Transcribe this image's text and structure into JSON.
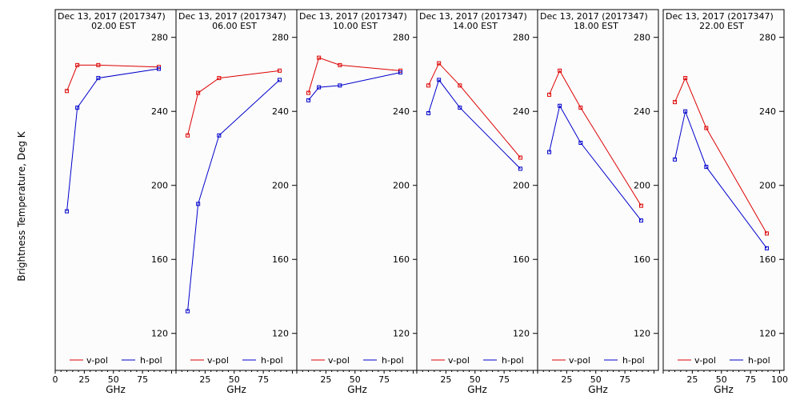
{
  "chart_data": {
    "type": "line",
    "ylabel": "Brightness Temperature, Deg K",
    "ylim": [
      100,
      295
    ],
    "yticks": [
      120,
      160,
      200,
      240,
      280
    ],
    "xlim": [
      0,
      95
    ],
    "xticks": [
      "0",
      "25",
      "50",
      "75",
      "100"
    ],
    "series_colors": {
      "v-pol": "#dd0000",
      "h-pol": "#0000cc"
    },
    "panels": [
      {
        "title_line1": "Dec 13, 2017 (2017347)",
        "title_line2": "02.00 EST",
        "xlabel": "GHz",
        "series": [
          {
            "name": "v-pol",
            "x": [
              10,
              19,
              37,
              89
            ],
            "y": [
              251,
              265,
              265,
              264
            ]
          },
          {
            "name": "h-pol",
            "x": [
              10,
              19,
              37,
              89
            ],
            "y": [
              186,
              242,
              258,
              263
            ]
          }
        ]
      },
      {
        "title_line1": "Dec 13, 2017 (2017347)",
        "title_line2": "06.00 EST",
        "xlabel": "GHz",
        "series": [
          {
            "name": "v-pol",
            "x": [
              10,
              19,
              37,
              89
            ],
            "y": [
              227,
              250,
              258,
              262
            ]
          },
          {
            "name": "h-pol",
            "x": [
              10,
              19,
              37,
              89
            ],
            "y": [
              132,
              190,
              227,
              257
            ]
          }
        ]
      },
      {
        "title_line1": "Dec 13, 2017 (2017347)",
        "title_line2": "10.00 EST",
        "xlabel": "GHz",
        "series": [
          {
            "name": "v-pol",
            "x": [
              10,
              19,
              37,
              89
            ],
            "y": [
              250,
              269,
              265,
              262
            ]
          },
          {
            "name": "h-pol",
            "x": [
              10,
              19,
              37,
              89
            ],
            "y": [
              246,
              253,
              254,
              261
            ]
          }
        ]
      },
      {
        "title_line1": "Dec 13, 2017 (2017347)",
        "title_line2": "14.00 EST",
        "xlabel": "GHz",
        "series": [
          {
            "name": "v-pol",
            "x": [
              10,
              19,
              37,
              89
            ],
            "y": [
              254,
              266,
              254,
              215
            ]
          },
          {
            "name": "h-pol",
            "x": [
              10,
              19,
              37,
              89
            ],
            "y": [
              239,
              257,
              242,
              209
            ]
          }
        ]
      },
      {
        "title_line1": "Dec 13, 2017 (2017347)",
        "title_line2": "18.00 EST",
        "xlabel": "GHz",
        "series": [
          {
            "name": "v-pol",
            "x": [
              10,
              19,
              37,
              89
            ],
            "y": [
              249,
              262,
              242,
              189
            ]
          },
          {
            "name": "h-pol",
            "x": [
              10,
              19,
              37,
              89
            ],
            "y": [
              218,
              243,
              223,
              181
            ]
          }
        ]
      },
      {
        "title_line1": "Dec 13, 2017 (2017347)",
        "title_line2": "22.00 EST",
        "xlabel": "GHz",
        "series": [
          {
            "name": "v-pol",
            "x": [
              10,
              19,
              37,
              89
            ],
            "y": [
              245,
              258,
              231,
              174
            ]
          },
          {
            "name": "h-pol",
            "x": [
              10,
              19,
              37,
              89
            ],
            "y": [
              214,
              240,
              210,
              166
            ]
          }
        ]
      }
    ]
  }
}
